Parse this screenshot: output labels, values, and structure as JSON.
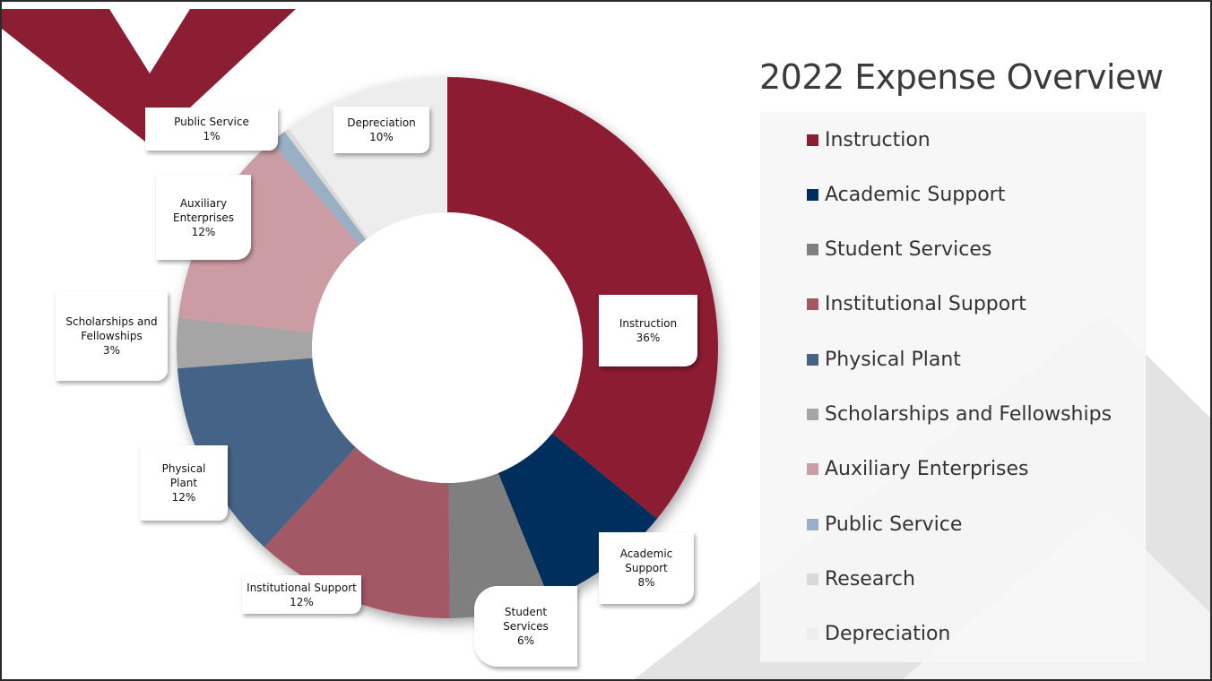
{
  "chart_data": {
    "type": "pie",
    "title": "2022 Expense Overview",
    "hole": 0.5,
    "slices": [
      {
        "label": "Instruction",
        "value": 36,
        "value_label": "36%",
        "color": "#8B1E32"
      },
      {
        "label": "Academic Support",
        "value": 8,
        "value_label": "8%",
        "color": "#002E5D"
      },
      {
        "label": "Student Services",
        "value": 6,
        "value_label": "6%",
        "color": "#7F7F7F"
      },
      {
        "label": "Institutional Support",
        "value": 12,
        "value_label": "12%",
        "color": "#A25865"
      },
      {
        "label": "Physical Plant",
        "value": 12,
        "value_label": "12%",
        "color": "#446386"
      },
      {
        "label": "Scholarships and Fellowships",
        "value": 3,
        "value_label": "3%",
        "color": "#A5A5A5"
      },
      {
        "label": "Auxiliary Enterprises",
        "value": 12,
        "value_label": "12%",
        "color": "#CC9CA4"
      },
      {
        "label": "Public Service",
        "value": 1,
        "value_label": "1%",
        "color": "#9AAEC4"
      },
      {
        "label": "Research",
        "value": 0.3,
        "value_label": "",
        "color": "#D9D9D9"
      },
      {
        "label": "Depreciation",
        "value": 10,
        "value_label": "10%",
        "color": "#EDEDED"
      }
    ],
    "legend_position": "right"
  }
}
